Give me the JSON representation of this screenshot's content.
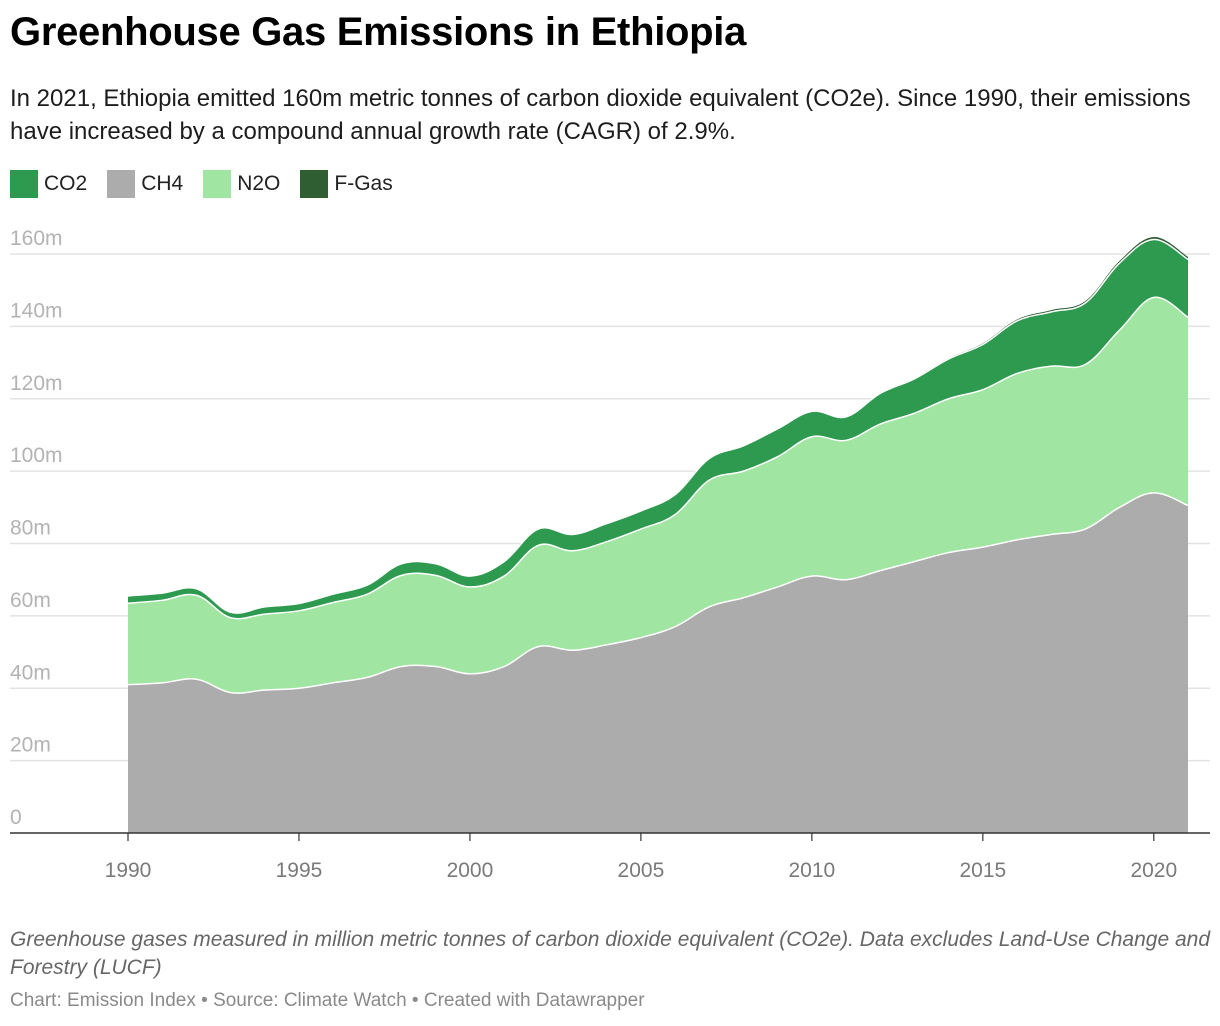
{
  "title": "Greenhouse Gas Emissions in Ethiopia",
  "subtitle": "In 2021, Ethiopia emitted 160m metric tonnes of carbon dioxide equivalent (CO2e). Since 1990, their emissions have increased by a compound annual growth rate (CAGR) of 2.9%.",
  "legend": [
    {
      "label": "CO2",
      "color": "#2e9a50"
    },
    {
      "label": "CH4",
      "color": "#acacac"
    },
    {
      "label": "N2O",
      "color": "#a0e6a2"
    },
    {
      "label": "F-Gas",
      "color": "#2f5e33"
    }
  ],
  "notes": "Greenhouse gases measured in million metric tonnes of carbon dioxide equivalent (CO2e). Data excludes Land-Use Change and Forestry (LUCF)",
  "credits": "Chart: Emission Index • Source: Climate Watch • Created with Datawrapper",
  "chart_data": {
    "type": "area",
    "stacked": true,
    "x": [
      1990,
      1991,
      1992,
      1993,
      1994,
      1995,
      1996,
      1997,
      1998,
      1999,
      2000,
      2001,
      2002,
      2003,
      2004,
      2005,
      2006,
      2007,
      2008,
      2009,
      2010,
      2011,
      2012,
      2013,
      2014,
      2015,
      2016,
      2017,
      2018,
      2019,
      2020,
      2021
    ],
    "series": [
      {
        "name": "CH4",
        "color": "#acacac",
        "values": [
          41,
          41.5,
          42.5,
          38.8,
          39.5,
          40,
          41.5,
          43,
          46,
          46,
          44,
          46,
          51.5,
          50.5,
          52,
          54,
          57,
          62.5,
          65,
          68,
          71,
          70,
          72.5,
          75,
          77.5,
          79,
          81,
          82.5,
          84,
          90,
          94,
          90.5
        ]
      },
      {
        "name": "N2O",
        "color": "#a0e6a2",
        "values": [
          22.5,
          22.8,
          23.2,
          20.7,
          21,
          21.4,
          22.2,
          23,
          25.2,
          25.2,
          24,
          25,
          28,
          27.5,
          28.5,
          30,
          31,
          35,
          35,
          36,
          38.5,
          38.5,
          40.5,
          41,
          42.5,
          43.5,
          46,
          46.5,
          45.5,
          49,
          54,
          52
        ]
      },
      {
        "name": "CO2",
        "color": "#2e9a50",
        "values": [
          2,
          2,
          1.8,
          1.5,
          2,
          2,
          2.3,
          2.5,
          3.2,
          3.2,
          3,
          4,
          4.5,
          4.5,
          5,
          5,
          5.5,
          6,
          7,
          7.7,
          7,
          6.5,
          8.5,
          9.5,
          11,
          12.5,
          14.5,
          15,
          17,
          18.5,
          16,
          16
        ]
      },
      {
        "name": "F-Gas",
        "color": "#2f5e33",
        "values": [
          0,
          0,
          0,
          0,
          0,
          0,
          0,
          0,
          0,
          0,
          0,
          0,
          0,
          0,
          0,
          0,
          0,
          0,
          0,
          0,
          0,
          0,
          0.1,
          0.2,
          0.2,
          0.3,
          0.4,
          0.5,
          0.5,
          0.6,
          0.7,
          0.7
        ]
      }
    ],
    "y_ticks": [
      0,
      20,
      40,
      60,
      80,
      100,
      120,
      140,
      160
    ],
    "y_tick_labels": [
      "0",
      "20m",
      "40m",
      "60m",
      "80m",
      "100m",
      "120m",
      "140m",
      "160m"
    ],
    "x_ticks": [
      1990,
      1995,
      2000,
      2005,
      2010,
      2015,
      2020
    ],
    "ylim": [
      0,
      160
    ],
    "xlim": [
      1987,
      2022.5
    ],
    "grid": true
  }
}
